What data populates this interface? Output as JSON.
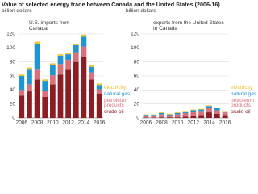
{
  "title": "Value of selected energy trade between Canada and the United States (2006-16)",
  "chart_data": [
    {
      "type": "bar",
      "stacked": true,
      "title": "U.S. imports from Canada",
      "y_label": "billion dollars",
      "categories": [
        "2006",
        null,
        "2008",
        null,
        "2010",
        null,
        "2012",
        null,
        "2014",
        null,
        "2016"
      ],
      "ylim": [
        0,
        120
      ],
      "yticks": [
        0,
        20,
        40,
        60,
        80,
        100,
        120
      ],
      "grid": true,
      "series": [
        {
          "name": "crude oil",
          "color": "#8c1d23",
          "values": [
            32,
            38,
            55,
            30,
            48,
            62,
            70,
            80,
            88,
            55,
            35
          ]
        },
        {
          "name": "petroleum products",
          "color": "#d9707c",
          "values": [
            8,
            10,
            15,
            9,
            13,
            15,
            13,
            14,
            14,
            10,
            6
          ]
        },
        {
          "name": "natural gas",
          "color": "#1f95d3",
          "values": [
            20,
            22,
            36,
            14,
            15,
            12,
            8,
            10,
            14,
            8,
            6
          ]
        },
        {
          "name": "electricity",
          "color": "#f2c12e",
          "values": [
            2,
            2,
            3,
            2,
            2,
            2,
            2,
            2,
            3,
            3,
            2
          ]
        }
      ]
    },
    {
      "type": "bar",
      "stacked": true,
      "title": "exports from the United States to Canada",
      "y_label": "billion dollars",
      "categories": [
        "2006",
        null,
        "2008",
        null,
        "2010",
        null,
        "2012",
        null,
        "2014",
        null,
        "2016"
      ],
      "ylim": [
        0,
        120
      ],
      "yticks": [
        0,
        20,
        40,
        60,
        80,
        100,
        120
      ],
      "grid": true,
      "series": [
        {
          "name": "crude oil",
          "color": "#8c1d23",
          "values": [
            0.5,
            0.5,
            1,
            1,
            1,
            2,
            3,
            4,
            8,
            6,
            4
          ]
        },
        {
          "name": "petroleum products",
          "color": "#d9707c",
          "values": [
            3,
            3,
            4,
            3,
            4,
            5,
            6,
            6,
            6,
            5,
            4
          ]
        },
        {
          "name": "natural gas",
          "color": "#1f95d3",
          "values": [
            1,
            1,
            2,
            1,
            2,
            2,
            2,
            2,
            3,
            3,
            1.5
          ]
        },
        {
          "name": "electricity",
          "color": "#f2c12e",
          "values": [
            0.5,
            0.5,
            1,
            1,
            1,
            1,
            1,
            1,
            1,
            1,
            0.5
          ]
        }
      ]
    }
  ]
}
